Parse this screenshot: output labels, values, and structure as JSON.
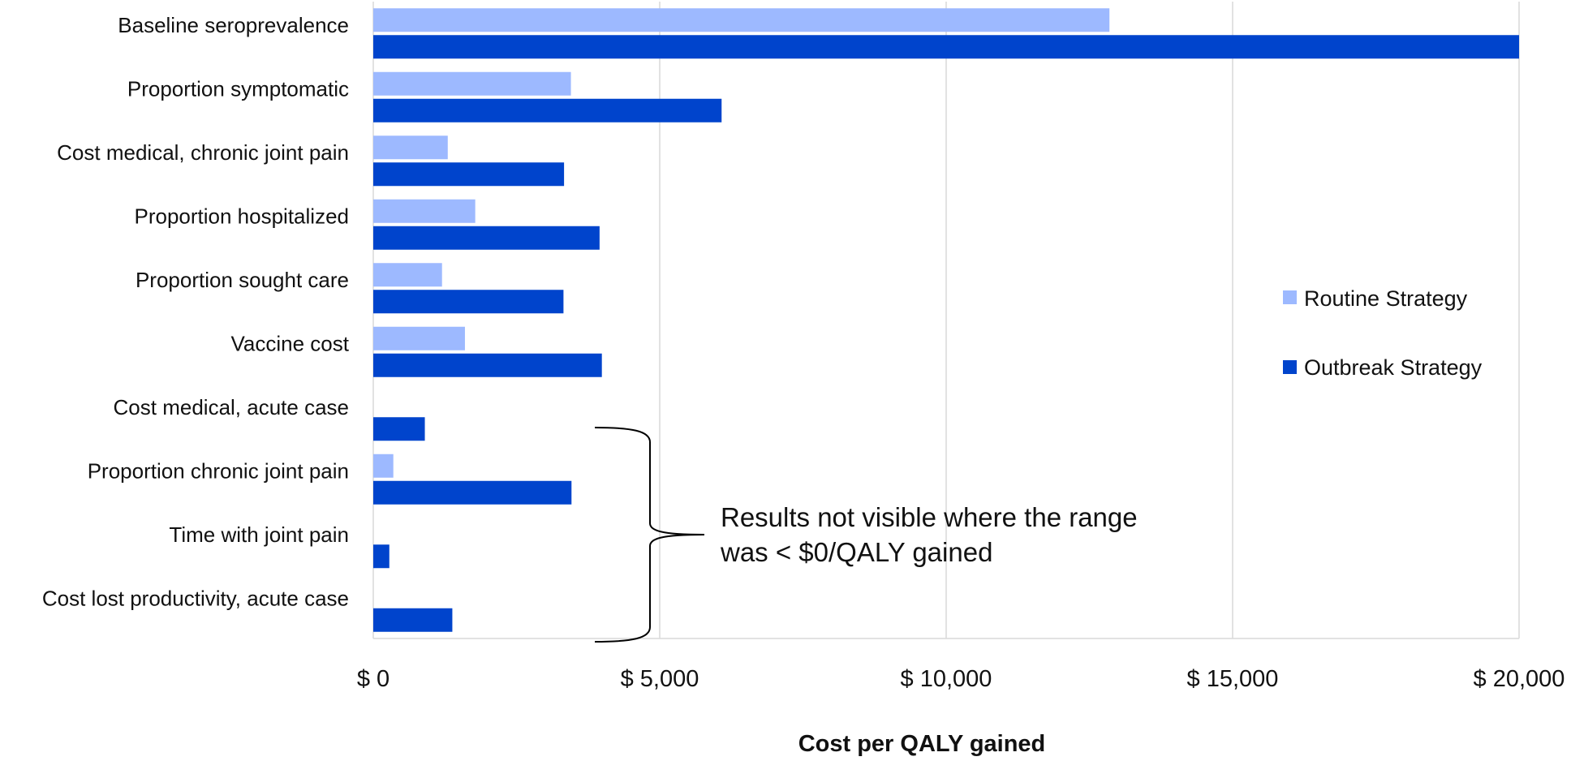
{
  "chart_data": {
    "type": "bar",
    "orientation": "horizontal",
    "categories": [
      "Baseline seroprevalence",
      "Proportion symptomatic",
      "Cost medical, chronic joint pain",
      "Proportion hospitalized",
      "Proportion sought care",
      "Vaccine cost",
      "Cost medical, acute case",
      "Proportion chronic joint pain",
      "Time with joint pain",
      "Cost lost productivity, acute case"
    ],
    "series": [
      {
        "name": "Routine Strategy",
        "color": "#9db9ff",
        "values": [
          12850,
          3450,
          1300,
          1780,
          1200,
          1600,
          0,
          350,
          0,
          0
        ]
      },
      {
        "name": "Outbreak Strategy",
        "color": "#0044cc",
        "values": [
          20000,
          6080,
          3330,
          3950,
          3320,
          3990,
          900,
          3460,
          280,
          1380
        ]
      }
    ],
    "xlim": [
      0,
      20000
    ],
    "xticks": [
      0,
      5000,
      10000,
      15000,
      20000
    ],
    "xtick_labels": [
      "$ 0",
      "$ 5,000",
      "$ 10,000",
      "$ 15,000",
      "$ 20,000"
    ],
    "xlabel": "Cost per QALY gained",
    "ylabel": "",
    "title": "",
    "grid": "vertical",
    "legend": "right",
    "annotation": {
      "lines": [
        "Results not visible where the range",
        "was < $0/QALY gained"
      ]
    }
  }
}
